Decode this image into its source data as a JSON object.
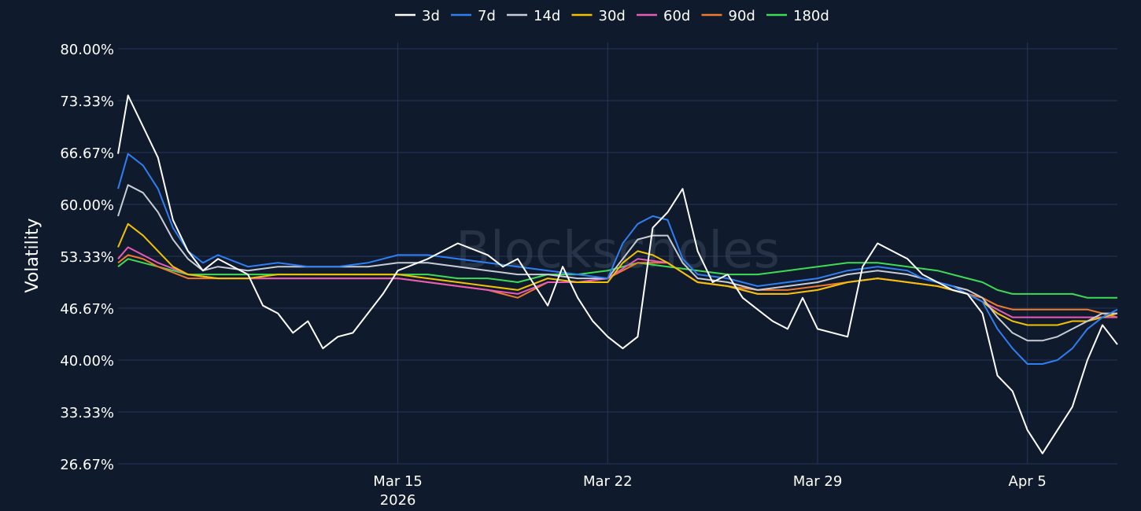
{
  "chart_data": {
    "type": "line",
    "title": "",
    "ylabel": "Volatility",
    "xlabel": "",
    "watermark": "Blockscholes",
    "ylim": [
      26.67,
      80.0
    ],
    "yticks": [
      "80.00%",
      "73.33%",
      "66.67%",
      "60.00%",
      "53.33%",
      "46.67%",
      "40.00%",
      "33.33%",
      "26.67%"
    ],
    "ytick_values": [
      80.0,
      73.33,
      66.67,
      60.0,
      53.33,
      46.67,
      40.0,
      33.33,
      26.67
    ],
    "xlim": [
      "2026-03-05T16:00",
      "2026-04-08T00:00"
    ],
    "xticks": [
      {
        "date": "2026-03-15",
        "label": "Mar 15",
        "sublabel": "2026"
      },
      {
        "date": "2026-03-22",
        "label": "Mar 22",
        "sublabel": ""
      },
      {
        "date": "2026-03-29",
        "label": "Mar 29",
        "sublabel": ""
      },
      {
        "date": "2026-04-05",
        "label": "Apr 5",
        "sublabel": ""
      }
    ],
    "grid": true,
    "legend_position": "top-center",
    "series": [
      {
        "name": "3d",
        "color": "#ffffff",
        "x": [
          "2026-03-05T16:00",
          "2026-03-06",
          "2026-03-06T12:00",
          "2026-03-07",
          "2026-03-07T12:00",
          "2026-03-08",
          "2026-03-08T12:00",
          "2026-03-09",
          "2026-03-10",
          "2026-03-10T12:00",
          "2026-03-11",
          "2026-03-11T12:00",
          "2026-03-12",
          "2026-03-12T12:00",
          "2026-03-13",
          "2026-03-13T12:00",
          "2026-03-14",
          "2026-03-14T12:00",
          "2026-03-15",
          "2026-03-16",
          "2026-03-17",
          "2026-03-18",
          "2026-03-18T12:00",
          "2026-03-19",
          "2026-03-19T12:00",
          "2026-03-20",
          "2026-03-20T12:00",
          "2026-03-21",
          "2026-03-21T12:00",
          "2026-03-22",
          "2026-03-22T12:00",
          "2026-03-23",
          "2026-03-23T12:00",
          "2026-03-24",
          "2026-03-24T12:00",
          "2026-03-25",
          "2026-03-25T12:00",
          "2026-03-26",
          "2026-03-26T12:00",
          "2026-03-27",
          "2026-03-27T12:00",
          "2026-03-28",
          "2026-03-28T12:00",
          "2026-03-29",
          "2026-03-30",
          "2026-03-30T12:00",
          "2026-03-31",
          "2026-04-01",
          "2026-04-01T12:00",
          "2026-04-02",
          "2026-04-02T12:00",
          "2026-04-03",
          "2026-04-03T12:00",
          "2026-04-04",
          "2026-04-04T12:00",
          "2026-04-05",
          "2026-04-05T12:00",
          "2026-04-06",
          "2026-04-06T12:00",
          "2026-04-07",
          "2026-04-07T12:00",
          "2026-04-08"
        ],
        "values": [
          66.5,
          74.0,
          70.0,
          66.0,
          58.0,
          54.0,
          51.5,
          53.0,
          51.0,
          47.0,
          46.0,
          43.5,
          45.0,
          41.5,
          43.0,
          43.5,
          46.0,
          48.5,
          51.5,
          53.0,
          55.0,
          53.5,
          52.0,
          53.0,
          50.0,
          47.0,
          52.0,
          48.0,
          45.0,
          43.0,
          41.5,
          43.0,
          57.0,
          59.0,
          62.0,
          54.0,
          50.0,
          51.0,
          48.0,
          46.5,
          45.0,
          44.0,
          48.0,
          44.0,
          43.0,
          52.0,
          55.0,
          53.0,
          51.0,
          50.0,
          49.0,
          48.5,
          46.0,
          38.0,
          36.0,
          31.0,
          28.0,
          31.0,
          34.0,
          40.0,
          44.5,
          42.0
        ]
      },
      {
        "name": "7d",
        "color": "#2f7ff2",
        "x": [
          "2026-03-05T16:00",
          "2026-03-06",
          "2026-03-06T12:00",
          "2026-03-07",
          "2026-03-07T12:00",
          "2026-03-08",
          "2026-03-08T12:00",
          "2026-03-09",
          "2026-03-10",
          "2026-03-11",
          "2026-03-12",
          "2026-03-13",
          "2026-03-14",
          "2026-03-15",
          "2026-03-16",
          "2026-03-17",
          "2026-03-18",
          "2026-03-19",
          "2026-03-20",
          "2026-03-21",
          "2026-03-22",
          "2026-03-22T12:00",
          "2026-03-23",
          "2026-03-23T12:00",
          "2026-03-24",
          "2026-03-24T12:00",
          "2026-03-25",
          "2026-03-26",
          "2026-03-27",
          "2026-03-28",
          "2026-03-29",
          "2026-03-30",
          "2026-03-31",
          "2026-04-01",
          "2026-04-01T12:00",
          "2026-04-02",
          "2026-04-02T12:00",
          "2026-04-03",
          "2026-04-03T12:00",
          "2026-04-04",
          "2026-04-04T12:00",
          "2026-04-05",
          "2026-04-05T12:00",
          "2026-04-06",
          "2026-04-06T12:00",
          "2026-04-07",
          "2026-04-07T12:00",
          "2026-04-08"
        ],
        "values": [
          62.0,
          66.5,
          65.0,
          62.0,
          57.0,
          54.0,
          52.5,
          53.5,
          52.0,
          52.5,
          52.0,
          52.0,
          52.5,
          53.5,
          53.5,
          53.0,
          52.5,
          52.0,
          51.5,
          51.0,
          50.5,
          55.0,
          57.5,
          58.5,
          58.0,
          53.0,
          51.0,
          50.5,
          49.5,
          50.0,
          50.5,
          51.5,
          52.0,
          51.5,
          50.5,
          50.0,
          49.5,
          48.5,
          47.5,
          44.0,
          41.5,
          39.5,
          39.5,
          40.0,
          41.5,
          44.0,
          45.5,
          46.5
        ]
      },
      {
        "name": "14d",
        "color": "#c8ccd4",
        "x": [
          "2026-03-05T16:00",
          "2026-03-06",
          "2026-03-06T12:00",
          "2026-03-07",
          "2026-03-07T12:00",
          "2026-03-08",
          "2026-03-08T12:00",
          "2026-03-09",
          "2026-03-10",
          "2026-03-11",
          "2026-03-12",
          "2026-03-13",
          "2026-03-14",
          "2026-03-15",
          "2026-03-16",
          "2026-03-17",
          "2026-03-18",
          "2026-03-19",
          "2026-03-20",
          "2026-03-21",
          "2026-03-22",
          "2026-03-22T12:00",
          "2026-03-23",
          "2026-03-23T12:00",
          "2026-03-24",
          "2026-03-24T12:00",
          "2026-03-25",
          "2026-03-26",
          "2026-03-27",
          "2026-03-28",
          "2026-03-29",
          "2026-03-30",
          "2026-03-31",
          "2026-04-01",
          "2026-04-01T12:00",
          "2026-04-02",
          "2026-04-02T12:00",
          "2026-04-03",
          "2026-04-03T12:00",
          "2026-04-04",
          "2026-04-04T12:00",
          "2026-04-05",
          "2026-04-05T12:00",
          "2026-04-06",
          "2026-04-06T12:00",
          "2026-04-07",
          "2026-04-07T12:00",
          "2026-04-08"
        ],
        "values": [
          58.5,
          62.5,
          61.5,
          59.0,
          55.5,
          53.0,
          51.5,
          52.0,
          51.5,
          52.0,
          52.0,
          52.0,
          52.0,
          52.5,
          52.5,
          52.0,
          51.5,
          51.0,
          51.0,
          50.5,
          50.5,
          53.0,
          55.5,
          56.0,
          56.0,
          52.5,
          50.5,
          50.0,
          49.0,
          49.5,
          50.0,
          51.0,
          51.5,
          51.0,
          50.5,
          50.0,
          49.5,
          49.0,
          48.0,
          45.5,
          43.5,
          42.5,
          42.5,
          43.0,
          44.0,
          45.0,
          46.0,
          46.0
        ]
      },
      {
        "name": "30d",
        "color": "#f2c200",
        "x": [
          "2026-03-05T16:00",
          "2026-03-06",
          "2026-03-06T12:00",
          "2026-03-07",
          "2026-03-07T12:00",
          "2026-03-08",
          "2026-03-09",
          "2026-03-10",
          "2026-03-11",
          "2026-03-12",
          "2026-03-13",
          "2026-03-14",
          "2026-03-15",
          "2026-03-16",
          "2026-03-17",
          "2026-03-18",
          "2026-03-19",
          "2026-03-20",
          "2026-03-21",
          "2026-03-22",
          "2026-03-22T12:00",
          "2026-03-23",
          "2026-03-23T12:00",
          "2026-03-24",
          "2026-03-25",
          "2026-03-26",
          "2026-03-27",
          "2026-03-28",
          "2026-03-29",
          "2026-03-30",
          "2026-03-31",
          "2026-04-01",
          "2026-04-02",
          "2026-04-03",
          "2026-04-03T12:00",
          "2026-04-04",
          "2026-04-04T12:00",
          "2026-04-05",
          "2026-04-05T12:00",
          "2026-04-06",
          "2026-04-06T12:00",
          "2026-04-07",
          "2026-04-07T12:00",
          "2026-04-08"
        ],
        "values": [
          54.5,
          57.5,
          56.0,
          54.0,
          52.0,
          51.0,
          50.5,
          50.5,
          51.0,
          51.0,
          51.0,
          51.0,
          51.0,
          50.5,
          50.0,
          49.5,
          49.0,
          50.5,
          50.0,
          50.0,
          52.5,
          54.0,
          53.5,
          52.5,
          50.0,
          49.5,
          48.5,
          48.5,
          49.0,
          50.0,
          50.5,
          50.0,
          49.5,
          48.5,
          47.5,
          46.0,
          45.0,
          44.5,
          44.5,
          44.5,
          45.0,
          45.0,
          45.5,
          46.0
        ]
      },
      {
        "name": "60d",
        "color": "#e85bb8",
        "x": [
          "2026-03-05T16:00",
          "2026-03-06",
          "2026-03-06T12:00",
          "2026-03-07",
          "2026-03-08",
          "2026-03-09",
          "2026-03-10",
          "2026-03-11",
          "2026-03-12",
          "2026-03-13",
          "2026-03-14",
          "2026-03-15",
          "2026-03-16",
          "2026-03-17",
          "2026-03-18",
          "2026-03-19",
          "2026-03-20",
          "2026-03-21",
          "2026-03-22",
          "2026-03-23",
          "2026-03-24",
          "2026-03-25",
          "2026-03-26",
          "2026-03-27",
          "2026-03-28",
          "2026-03-29",
          "2026-03-30",
          "2026-03-31",
          "2026-04-01",
          "2026-04-02",
          "2026-04-03",
          "2026-04-03T12:00",
          "2026-04-04",
          "2026-04-04T12:00",
          "2026-04-05",
          "2026-04-05T12:00",
          "2026-04-06",
          "2026-04-06T12:00",
          "2026-04-07",
          "2026-04-07T12:00",
          "2026-04-08"
        ],
        "values": [
          53.0,
          54.5,
          53.5,
          52.5,
          51.0,
          50.5,
          50.5,
          50.5,
          50.5,
          50.5,
          50.5,
          50.5,
          50.0,
          49.5,
          49.0,
          48.5,
          50.0,
          50.0,
          50.5,
          53.0,
          52.5,
          50.0,
          49.5,
          48.5,
          48.5,
          49.0,
          50.0,
          50.5,
          50.0,
          49.5,
          48.5,
          47.5,
          46.5,
          45.5,
          45.5,
          45.5,
          45.5,
          45.5,
          45.5,
          45.5,
          45.5
        ]
      },
      {
        "name": "90d",
        "color": "#f07a2c",
        "x": [
          "2026-03-05T16:00",
          "2026-03-06",
          "2026-03-06T12:00",
          "2026-03-07",
          "2026-03-08",
          "2026-03-09",
          "2026-03-10",
          "2026-03-11",
          "2026-03-12",
          "2026-03-13",
          "2026-03-14",
          "2026-03-15",
          "2026-03-16",
          "2026-03-17",
          "2026-03-18",
          "2026-03-19",
          "2026-03-20",
          "2026-03-21",
          "2026-03-22",
          "2026-03-23",
          "2026-03-24",
          "2026-03-25",
          "2026-03-26",
          "2026-03-27",
          "2026-03-28",
          "2026-03-29",
          "2026-03-30",
          "2026-03-31",
          "2026-04-01",
          "2026-04-02",
          "2026-04-03",
          "2026-04-03T12:00",
          "2026-04-04",
          "2026-04-04T12:00",
          "2026-04-05",
          "2026-04-05T12:00",
          "2026-04-06",
          "2026-04-06T12:00",
          "2026-04-07",
          "2026-04-07T12:00",
          "2026-04-08"
        ],
        "values": [
          52.5,
          53.5,
          53.0,
          52.0,
          50.5,
          50.5,
          50.5,
          50.5,
          50.5,
          50.5,
          50.5,
          50.5,
          50.0,
          49.5,
          49.0,
          48.0,
          50.0,
          50.0,
          50.5,
          52.5,
          52.5,
          50.0,
          49.5,
          49.0,
          49.0,
          49.5,
          50.0,
          50.5,
          50.0,
          49.5,
          48.5,
          48.0,
          47.0,
          46.5,
          46.5,
          46.5,
          46.5,
          46.5,
          46.5,
          46.0,
          45.5
        ]
      },
      {
        "name": "180d",
        "color": "#3ddc55",
        "x": [
          "2026-03-05T16:00",
          "2026-03-06",
          "2026-03-06T12:00",
          "2026-03-07",
          "2026-03-08",
          "2026-03-09",
          "2026-03-10",
          "2026-03-11",
          "2026-03-12",
          "2026-03-13",
          "2026-03-14",
          "2026-03-15",
          "2026-03-16",
          "2026-03-17",
          "2026-03-18",
          "2026-03-19",
          "2026-03-20",
          "2026-03-21",
          "2026-03-22",
          "2026-03-23",
          "2026-03-24",
          "2026-03-25",
          "2026-03-26",
          "2026-03-27",
          "2026-03-28",
          "2026-03-29",
          "2026-03-30",
          "2026-03-31",
          "2026-04-01",
          "2026-04-02",
          "2026-04-03",
          "2026-04-03T12:00",
          "2026-04-04",
          "2026-04-04T12:00",
          "2026-04-05",
          "2026-04-05T12:00",
          "2026-04-06",
          "2026-04-06T12:00",
          "2026-04-07",
          "2026-04-07T12:00",
          "2026-04-08"
        ],
        "values": [
          52.0,
          53.0,
          52.5,
          52.0,
          51.0,
          51.0,
          51.0,
          51.0,
          51.0,
          51.0,
          51.0,
          51.0,
          51.0,
          50.5,
          50.5,
          50.0,
          51.0,
          51.0,
          51.5,
          52.5,
          52.0,
          51.5,
          51.0,
          51.0,
          51.5,
          52.0,
          52.5,
          52.5,
          52.0,
          51.5,
          50.5,
          50.0,
          49.0,
          48.5,
          48.5,
          48.5,
          48.5,
          48.5,
          48.0,
          48.0,
          48.0
        ]
      }
    ]
  }
}
